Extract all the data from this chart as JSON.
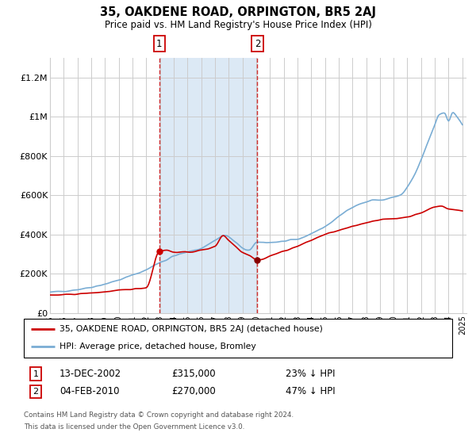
{
  "title": "35, OAKDENE ROAD, ORPINGTON, BR5 2AJ",
  "subtitle": "Price paid vs. HM Land Registry's House Price Index (HPI)",
  "legend_line1": "35, OAKDENE ROAD, ORPINGTON, BR5 2AJ (detached house)",
  "legend_line2": "HPI: Average price, detached house, Bromley",
  "footnote1": "Contains HM Land Registry data © Crown copyright and database right 2024.",
  "footnote2": "This data is licensed under the Open Government Licence v3.0.",
  "transaction1_date": "13-DEC-2002",
  "transaction1_price": "£315,000",
  "transaction1_hpi": "23% ↓ HPI",
  "transaction2_date": "04-FEB-2010",
  "transaction2_price": "£270,000",
  "transaction2_hpi": "47% ↓ HPI",
  "ylim": [
    0,
    1300000
  ],
  "yticks": [
    0,
    200000,
    400000,
    600000,
    800000,
    1000000,
    1200000
  ],
  "ytick_labels": [
    "£0",
    "£200K",
    "£400K",
    "£600K",
    "£800K",
    "£1M",
    "£1.2M"
  ],
  "line_color_red": "#cc0000",
  "line_color_blue": "#7aadd4",
  "shaded_color": "#dce9f5",
  "grid_color": "#cccccc",
  "background_color": "#ffffff",
  "transaction1_x": 2002.96,
  "transaction2_x": 2010.09,
  "transaction1_price_val": 315000,
  "transaction2_price_val": 270000
}
